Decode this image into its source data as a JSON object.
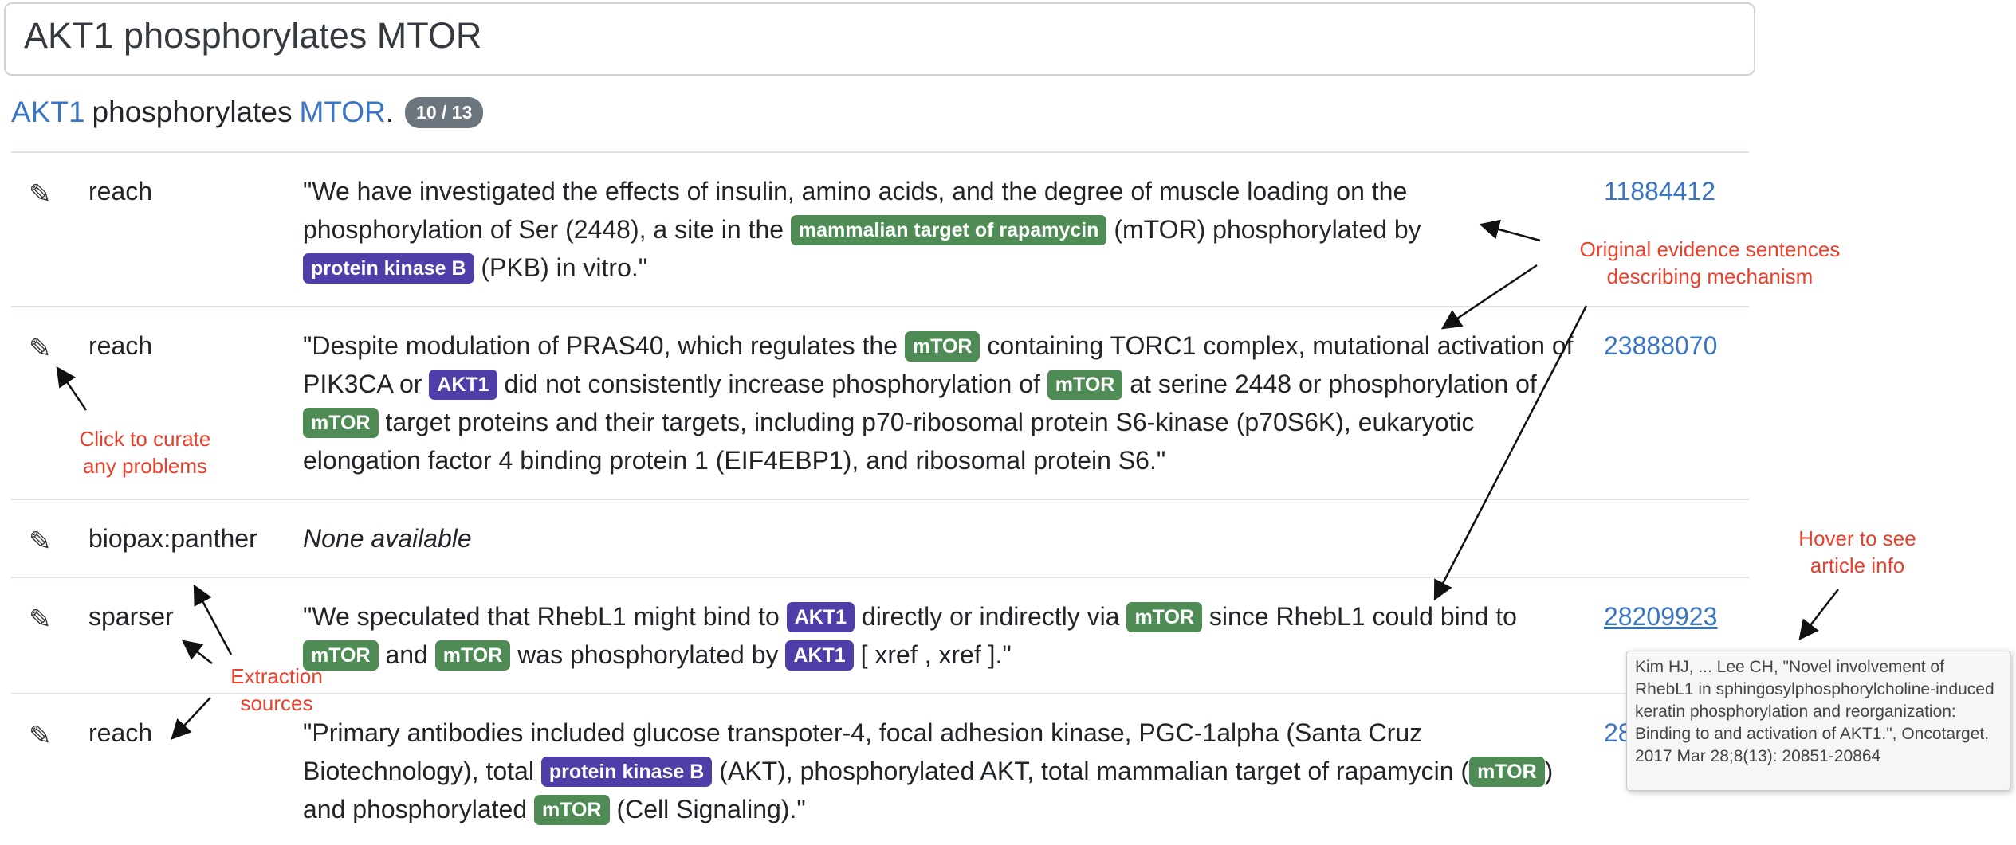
{
  "title": "AKT1 phosphorylates MTOR",
  "statement": {
    "subject": "AKT1",
    "verb": "phosphorylates",
    "object": "MTOR",
    "end": ".",
    "badge": "10 / 13"
  },
  "rows": [
    {
      "edit_icon": "pencil-icon",
      "source": "reach",
      "pmid": "11884412",
      "evidence": [
        {
          "t": "\"We have investigated the effects of insulin, amino acids, and the degree of muscle loading on the phosphorylation of Ser (2448), a site in the "
        },
        {
          "tag": "mammalian target of rapamycin",
          "color": "green"
        },
        {
          "t": " (mTOR) phosphorylated by "
        },
        {
          "tag": "protein kinase B",
          "color": "purple"
        },
        {
          "t": " (PKB) in vitro.\""
        }
      ]
    },
    {
      "edit_icon": "pencil-icon",
      "source": "reach",
      "pmid": "23888070",
      "evidence": [
        {
          "t": "\"Despite modulation of PRAS40, which regulates the "
        },
        {
          "tag": "mTOR",
          "color": "green"
        },
        {
          "t": " containing TORC1 complex, mutational activation of PIK3CA or "
        },
        {
          "tag": "AKT1",
          "color": "purple"
        },
        {
          "t": " did not consistently increase phosphorylation of "
        },
        {
          "tag": "mTOR",
          "color": "green"
        },
        {
          "t": " at serine 2448 or phosphorylation of "
        },
        {
          "tag": "mTOR",
          "color": "green"
        },
        {
          "t": " target proteins and their targets, including p70-ribosomal protein S6-kinase (p70S6K), eukaryotic elongation factor 4 binding protein 1 (EIF4EBP1), and ribosomal protein S6.\""
        }
      ]
    },
    {
      "edit_icon": "pencil-icon",
      "source": "biopax:panther",
      "pmid": "",
      "none_text": "None available",
      "evidence": []
    },
    {
      "edit_icon": "pencil-icon",
      "source": "sparser",
      "pmid": "28209923",
      "evidence": [
        {
          "t": "\"We speculated that RhebL1 might bind to "
        },
        {
          "tag": "AKT1",
          "color": "purple"
        },
        {
          "t": " directly or indirectly via "
        },
        {
          "tag": "mTOR",
          "color": "green"
        },
        {
          "t": " since RhebL1 could bind to "
        },
        {
          "tag": "mTOR",
          "color": "green"
        },
        {
          "t": " and "
        },
        {
          "tag": "mTOR",
          "color": "green"
        },
        {
          "t": " was phosphorylated by "
        },
        {
          "tag": "AKT1",
          "color": "purple"
        },
        {
          "t": " [ xref , xref ].\""
        }
      ]
    },
    {
      "edit_icon": "pencil-icon",
      "source": "reach",
      "pmid": "28??7???",
      "evidence": [
        {
          "t": "\"Primary antibodies included glucose transpoter-4, focal adhesion kinase, PGC-1alpha (Santa Cruz Biotechnology), total "
        },
        {
          "tag": "protein kinase B",
          "color": "purple"
        },
        {
          "t": " (AKT), phosphorylated AKT, total mammalian target of rapamycin ("
        },
        {
          "tag": "mTOR",
          "color": "green"
        },
        {
          "t": ") and phosphorylated "
        },
        {
          "tag": "mTOR",
          "color": "green"
        },
        {
          "t": " (Cell Signaling).\""
        }
      ]
    }
  ],
  "tooltip": "Kim HJ, ... Lee CH, \"Novel involvement of RhebL1 in sphingosylphosphorylcholine-induced keratin phosphorylation and reorganization: Binding to and activation of AKT1.\", Oncotarget, 2017 Mar 28;8(13): 20851-20864",
  "annotations": {
    "original_evidence": "Original evidence sentences describing mechanism",
    "curate": "Click to curate any problems",
    "hover": "Hover to see article info",
    "extraction": "Extraction sources"
  },
  "colors": {
    "accent_blue": "#3a75c4",
    "tag_green": "#4e8b55",
    "tag_purple": "#4d3fa7",
    "annotation_red": "#e8402a"
  }
}
